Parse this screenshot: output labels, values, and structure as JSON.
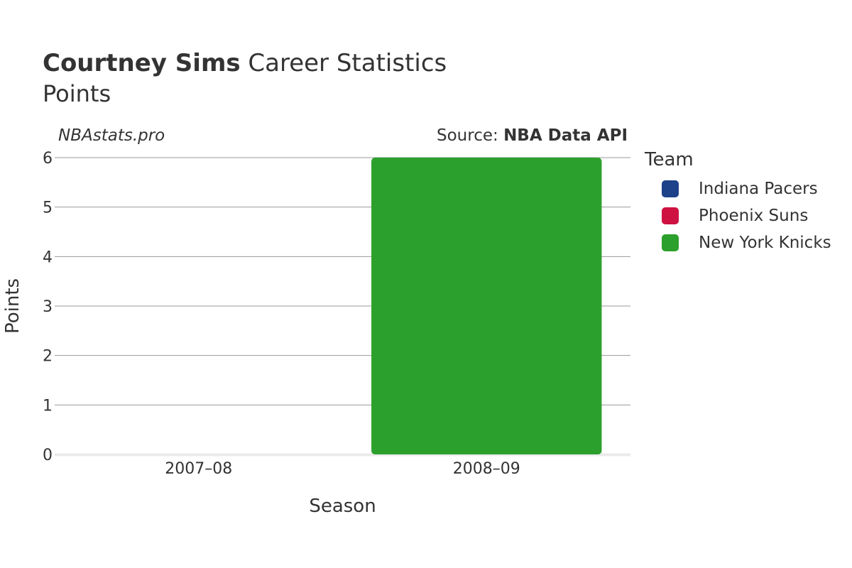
{
  "header": {
    "title_bold": "Courtney Sims",
    "title_rest": " Career Statistics",
    "subtitle": "Points",
    "watermark": "NBAstats.pro",
    "source_prefix": "Source: ",
    "source_name": "NBA Data API"
  },
  "legend": {
    "title": "Team",
    "items": [
      {
        "label": "Indiana Pacers",
        "color": "#1d428a"
      },
      {
        "label": "Phoenix Suns",
        "color": "#ce1141"
      },
      {
        "label": "New York Knicks",
        "color": "#2ca02c"
      }
    ]
  },
  "chart_data": {
    "type": "bar",
    "stacked": true,
    "title": "Courtney Sims Career Statistics",
    "subtitle": "Points",
    "xlabel": "Season",
    "ylabel": "Points",
    "categories": [
      "2007–08",
      "2008–09"
    ],
    "ylim": [
      0,
      6
    ],
    "yticks": [
      "0",
      "1",
      "2",
      "3",
      "4",
      "5",
      "6"
    ],
    "grid": true,
    "legend_position": "right",
    "series": [
      {
        "name": "Indiana Pacers",
        "color": "#1d428a",
        "values": [
          0,
          0
        ]
      },
      {
        "name": "Phoenix Suns",
        "color": "#ce1141",
        "values": [
          0,
          0
        ]
      },
      {
        "name": "New York Knicks",
        "color": "#2ca02c",
        "values": [
          0,
          6
        ]
      }
    ]
  }
}
